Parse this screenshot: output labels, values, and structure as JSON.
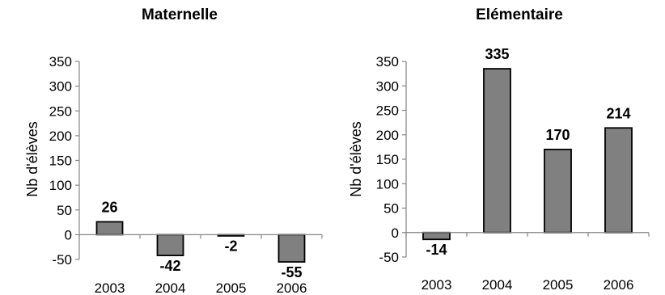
{
  "chart_data": [
    {
      "type": "bar",
      "title": "Maternelle",
      "xlabel": "",
      "ylabel": "Nb d'élèves",
      "categories": [
        "2003",
        "2004",
        "2005",
        "2006"
      ],
      "values": [
        26,
        -42,
        -2,
        -55
      ],
      "data_labels": [
        "26",
        "-42",
        "-2",
        "-55"
      ],
      "ylim": [
        -50,
        350
      ],
      "yticks": [
        "350",
        "300",
        "250",
        "200",
        "150",
        "100",
        "50",
        "0",
        "-50"
      ],
      "grid": false,
      "legend": "none",
      "bar_color": "#808080"
    },
    {
      "type": "bar",
      "title": "Elémentaire",
      "xlabel": "",
      "ylabel": "Nb d'élèves",
      "categories": [
        "2003",
        "2004",
        "2005",
        "2006"
      ],
      "values": [
        -14,
        335,
        170,
        214
      ],
      "data_labels": [
        "-14",
        "335",
        "170",
        "214"
      ],
      "ylim": [
        -50,
        350
      ],
      "yticks": [
        "350",
        "300",
        "250",
        "200",
        "150",
        "100",
        "50",
        "0",
        "-50"
      ],
      "grid": false,
      "legend": "none",
      "bar_color": "#808080"
    }
  ]
}
